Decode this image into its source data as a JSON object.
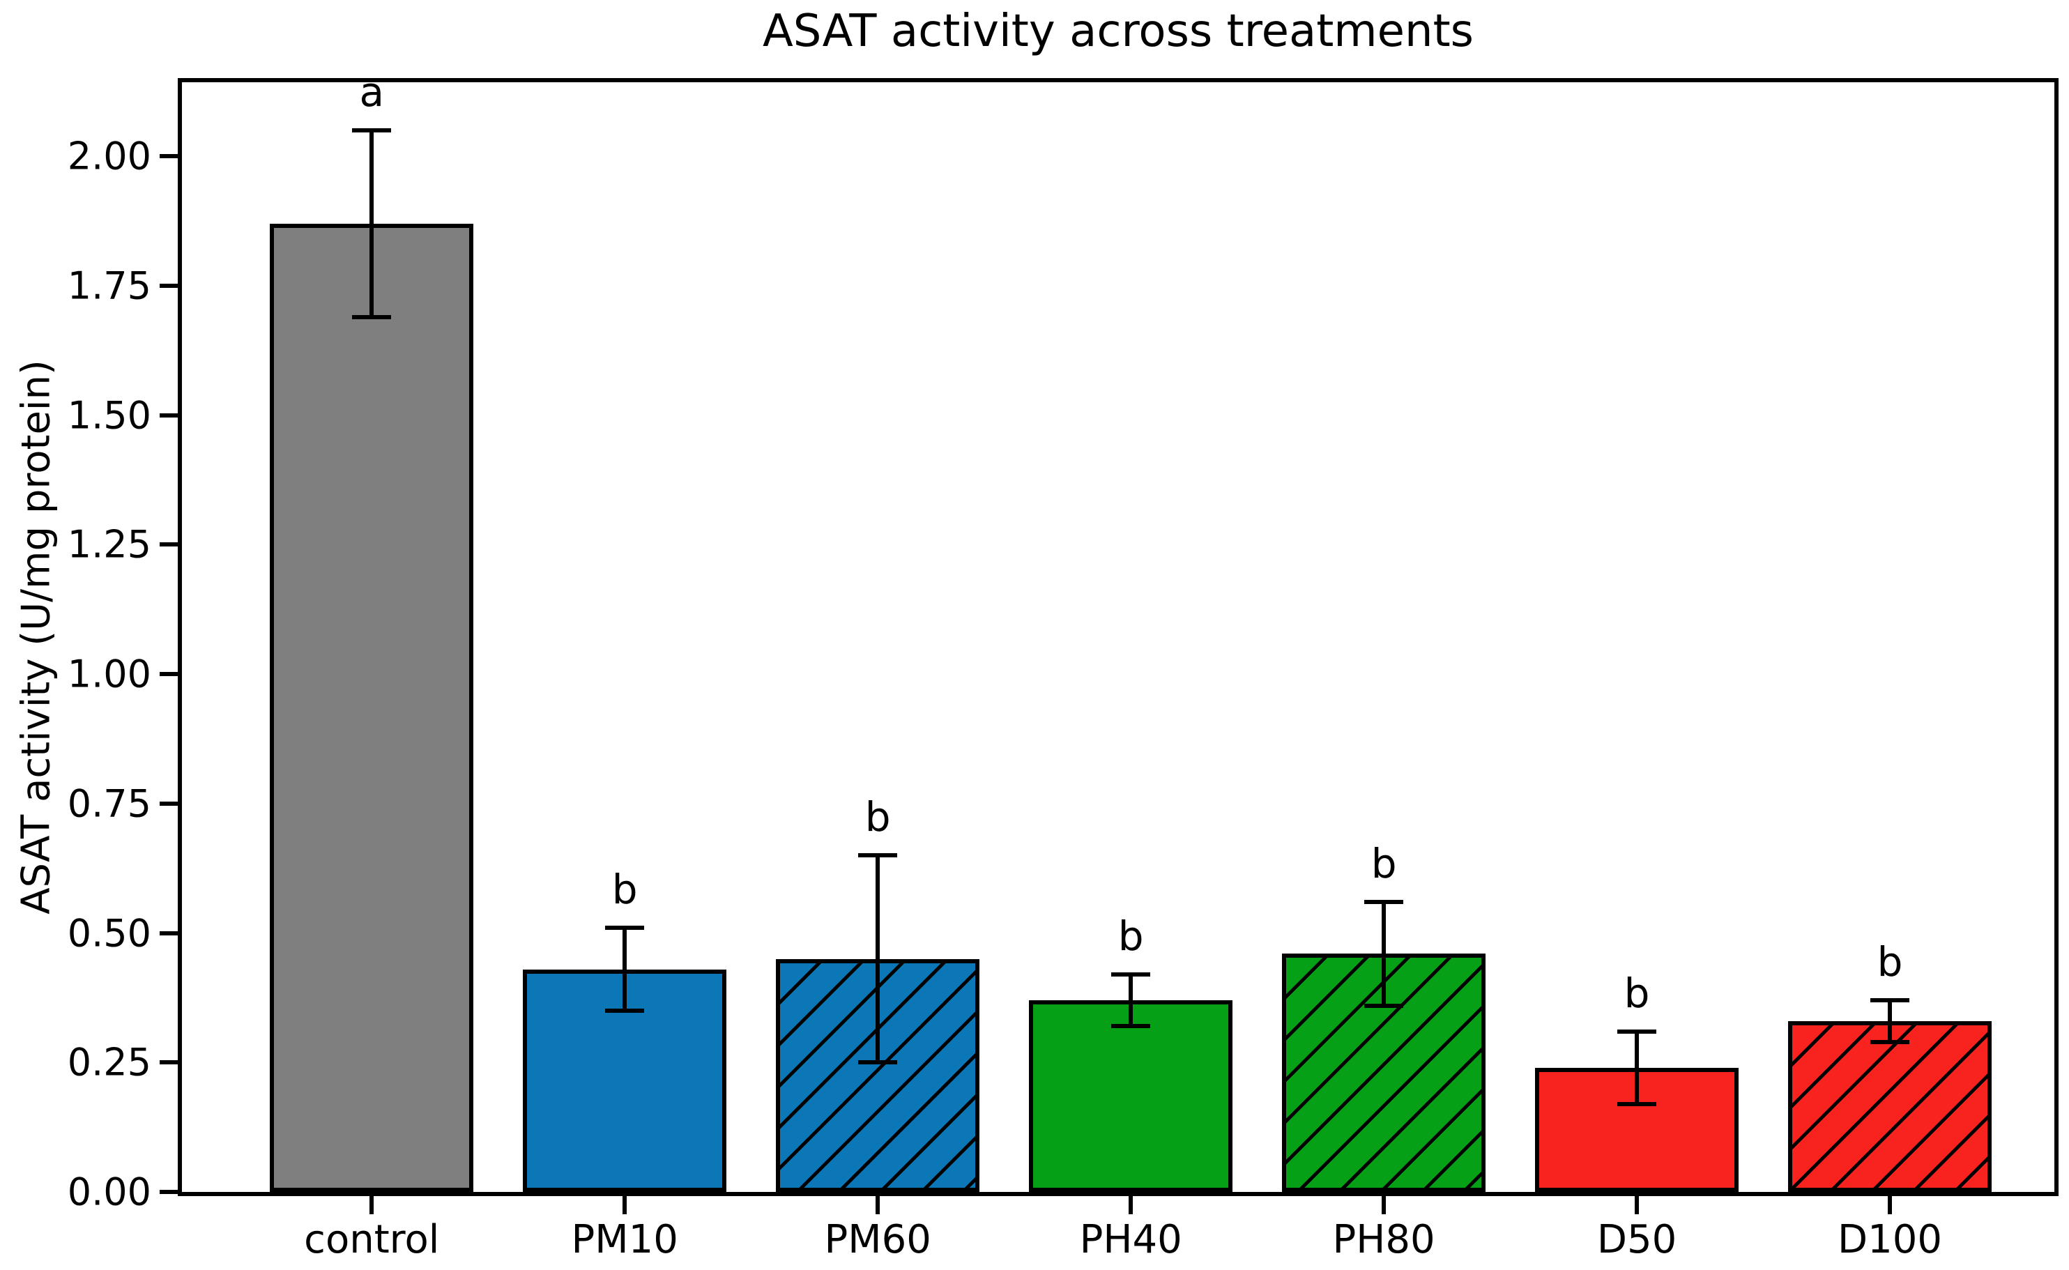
{
  "figure": {
    "background": "#ffffff"
  },
  "chart_data": {
    "type": "bar",
    "title": "ASAT activity across treatments",
    "xlabel": "",
    "ylabel": "ASAT activity (U/mg protein)",
    "categories": [
      "control",
      "PM10",
      "PM60",
      "PH40",
      "PH80",
      "D50",
      "D100"
    ],
    "series": [
      {
        "name": "ASAT activity",
        "values": [
          1.87,
          0.43,
          0.45,
          0.37,
          0.46,
          0.24,
          0.33
        ],
        "errors": [
          0.18,
          0.08,
          0.2,
          0.05,
          0.1,
          0.07,
          0.04
        ]
      }
    ],
    "sig_letters": [
      "a",
      "b",
      "b",
      "b",
      "b",
      "b",
      "b"
    ],
    "bar_colors": [
      "#7f7f7f",
      "#0b77b7",
      "#0b77b7",
      "#05a015",
      "#05a015",
      "#f8231f",
      "#f8231f"
    ],
    "bar_hatched": [
      false,
      false,
      true,
      false,
      true,
      false,
      true
    ],
    "hatch_pattern": "/",
    "bar_edge_color": "#000000",
    "error_bar_color": "#000000",
    "ylim": [
      0,
      2.143
    ],
    "yticks": [
      "0.00",
      "0.25",
      "0.50",
      "0.75",
      "1.00",
      "1.25",
      "1.50",
      "1.75",
      "2.00"
    ],
    "grid": false,
    "legend": null
  }
}
